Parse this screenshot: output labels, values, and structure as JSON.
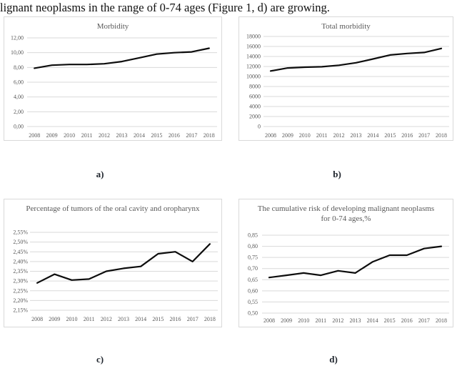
{
  "page": {
    "caption": "lignant neoplasms in the range of 0-74 ages (Figure 1, d) are growing."
  },
  "figure_labels": {
    "a": "a)",
    "b": "b)",
    "c": "c)",
    "d": "d)"
  },
  "colors": {
    "line": "#0d0d0d",
    "grid": "#d9d9d9",
    "panel_border": "#d9d9d9",
    "title_text": "#595959",
    "tick_text": "#595959",
    "caption_text": "#111111",
    "figure_label_text": "#20262e"
  },
  "chart_data": [
    {
      "id": "a",
      "type": "line",
      "title": "Morbidity",
      "categories": [
        "2008",
        "2009",
        "2010",
        "2011",
        "2012",
        "2013",
        "2014",
        "2015",
        "2016",
        "2017",
        "2018"
      ],
      "values": [
        7.9,
        8.3,
        8.4,
        8.4,
        8.5,
        8.8,
        9.3,
        9.8,
        10.0,
        10.1,
        10.6
      ],
      "xlabel": "",
      "ylabel": "",
      "ylim": [
        0,
        12
      ],
      "ytick_values": [
        12,
        10,
        8,
        6,
        4,
        2,
        0
      ],
      "ytick_labels": [
        "12,00",
        "10,00",
        "8,00",
        "6,00",
        "4,00",
        "2,00",
        "0,00"
      ],
      "grid": true,
      "legend": false
    },
    {
      "id": "b",
      "type": "line",
      "title": "Total morbidity",
      "categories": [
        "2008",
        "2009",
        "2010",
        "2011",
        "2012",
        "2013",
        "2014",
        "2015",
        "2016",
        "2017",
        "2018"
      ],
      "values": [
        11100,
        11700,
        11850,
        11950,
        12250,
        12750,
        13500,
        14300,
        14600,
        14800,
        15600
      ],
      "xlabel": "",
      "ylabel": "",
      "ylim": [
        0,
        18000
      ],
      "ytick_values": [
        18000,
        16000,
        14000,
        12000,
        10000,
        8000,
        6000,
        4000,
        2000,
        0
      ],
      "ytick_labels": [
        "18000",
        "16000",
        "14000",
        "12000",
        "10000",
        "8000",
        "6000",
        "4000",
        "2000",
        "0"
      ],
      "grid": true,
      "legend": false
    },
    {
      "id": "c",
      "type": "line",
      "title": "Percentage of tumors of the oral cavity and oropharynx",
      "categories": [
        "2008",
        "2009",
        "2010",
        "2011",
        "2012",
        "2013",
        "2014",
        "2015",
        "2016",
        "2017",
        "2018"
      ],
      "values": [
        2.29,
        2.335,
        2.305,
        2.31,
        2.35,
        2.365,
        2.375,
        2.44,
        2.45,
        2.4,
        2.49
      ],
      "xlabel": "",
      "ylabel": "",
      "ylim": [
        2.15,
        2.55
      ],
      "ytick_values": [
        2.55,
        2.5,
        2.45,
        2.4,
        2.35,
        2.3,
        2.25,
        2.2,
        2.15
      ],
      "ytick_labels": [
        "2,55%",
        "2,50%",
        "2,45%",
        "2,40%",
        "2,35%",
        "2,30%",
        "2,25%",
        "2,20%",
        "2,15%"
      ],
      "grid": true,
      "legend": false
    },
    {
      "id": "d",
      "type": "line",
      "title": "The cumulative risk of developing malignant neoplasms for 0-74 ages,%",
      "categories": [
        "2008",
        "2009",
        "2010",
        "2011",
        "2012",
        "2013",
        "2014",
        "2015",
        "2016",
        "2017",
        "2018"
      ],
      "values": [
        0.66,
        0.67,
        0.68,
        0.67,
        0.69,
        0.68,
        0.73,
        0.76,
        0.76,
        0.79,
        0.8
      ],
      "xlabel": "",
      "ylabel": "",
      "ylim": [
        0.5,
        0.85
      ],
      "ytick_values": [
        0.85,
        0.8,
        0.75,
        0.7,
        0.65,
        0.6,
        0.55,
        0.5
      ],
      "ytick_labels": [
        "0,85",
        "0,80",
        "0,75",
        "0,70",
        "0,65",
        "0,60",
        "0,55",
        "0,50"
      ],
      "grid": true,
      "legend": false
    }
  ]
}
